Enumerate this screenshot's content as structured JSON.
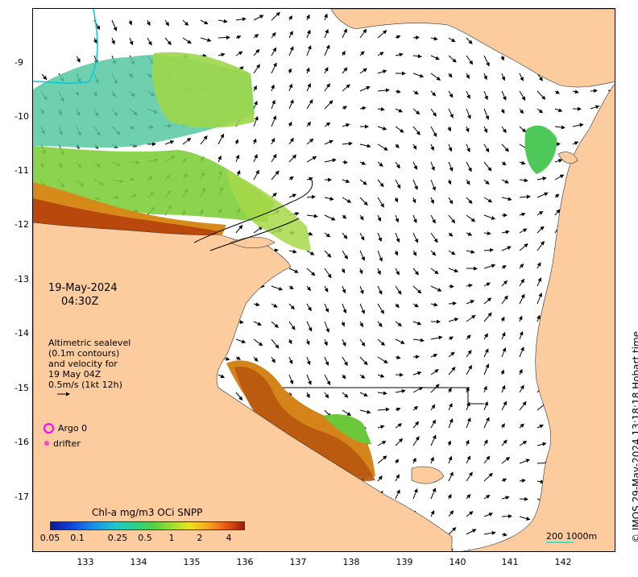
{
  "map": {
    "date": "19-May-2024",
    "time": "04:30Z",
    "legend_lines": [
      "Altimetric sealevel",
      "(0.1m contours)",
      "and velocity for",
      "19 May 04Z",
      "0.5m/s (1kt 12h)"
    ],
    "argo_label": "Argo 0",
    "drifter_label": "drifter",
    "colorbar_title": "Chl-a mg/m3 OCi SNPP",
    "colorbar_ticks": [
      "0.05",
      "0.1",
      "0.25",
      "0.5",
      "1",
      "2",
      "4"
    ],
    "scale_text": "200  1000m",
    "credit": "© IMOS 29-May-2024 13:18:18 Hobart time",
    "y_ticks": [
      "-9",
      "-10",
      "-11",
      "-12",
      "-13",
      "-14",
      "-15",
      "-16",
      "-17"
    ],
    "x_ticks": [
      "133",
      "134",
      "135",
      "136",
      "137",
      "138",
      "139",
      "140",
      "141",
      "142"
    ],
    "colors": {
      "land": "#fccc9e",
      "ocean": "#ffffff",
      "argo": "#ff00ff",
      "drifter": "#ff44cc",
      "scale_bar": "#40e0d0",
      "river": "#00c8e0"
    }
  }
}
